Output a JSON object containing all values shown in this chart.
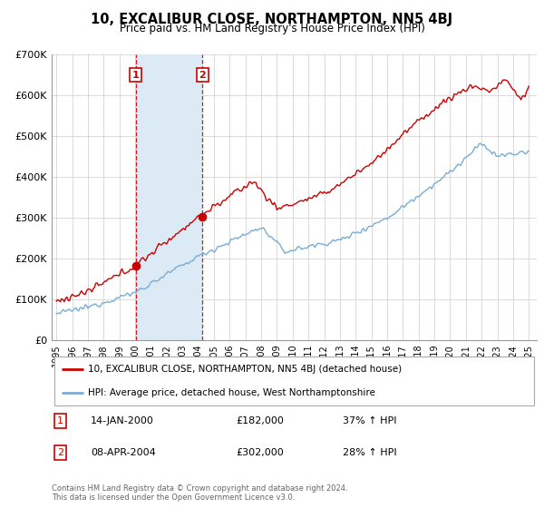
{
  "title": "10, EXCALIBUR CLOSE, NORTHAMPTON, NN5 4BJ",
  "subtitle": "Price paid vs. HM Land Registry's House Price Index (HPI)",
  "legend_line1": "10, EXCALIBUR CLOSE, NORTHAMPTON, NN5 4BJ (detached house)",
  "legend_line2": "HPI: Average price, detached house, West Northamptonshire",
  "annotation1_label": "1",
  "annotation1_date": "14-JAN-2000",
  "annotation1_price": "£182,000",
  "annotation1_hpi": "37% ↑ HPI",
  "annotation2_label": "2",
  "annotation2_date": "08-APR-2004",
  "annotation2_price": "£302,000",
  "annotation2_hpi": "28% ↑ HPI",
  "footer": "Contains HM Land Registry data © Crown copyright and database right 2024.\nThis data is licensed under the Open Government Licence v3.0.",
  "red_color": "#cc0000",
  "blue_color": "#7aadd4",
  "shaded_color": "#dbeaf5",
  "annotation_box_color": "#cc0000",
  "ylim": [
    0,
    700000
  ],
  "yticks": [
    0,
    100000,
    200000,
    300000,
    400000,
    500000,
    600000,
    700000
  ],
  "ytick_labels": [
    "£0",
    "£100K",
    "£200K",
    "£300K",
    "£400K",
    "£500K",
    "£600K",
    "£700K"
  ]
}
